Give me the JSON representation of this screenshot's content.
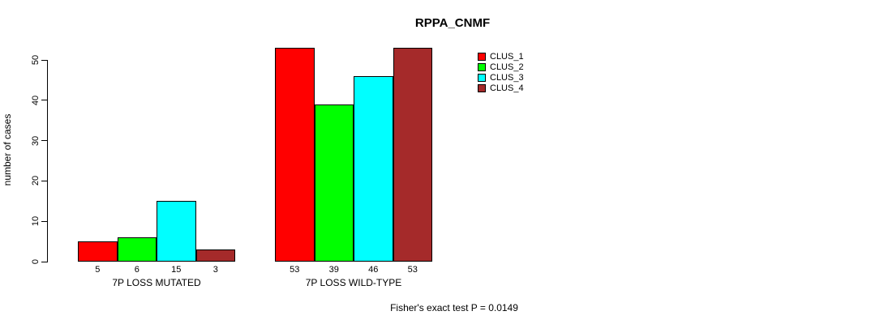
{
  "title": "RPPA_CNMF",
  "ylabel": "number of cases",
  "footer": "Fisher's exact test P = 0.0149",
  "chart_data": {
    "type": "bar",
    "title": "RPPA_CNMF",
    "xlabel": "",
    "ylabel": "number of cases",
    "categories": [
      "7P LOSS MUTATED",
      "7P LOSS WILD-TYPE"
    ],
    "series": [
      {
        "name": "CLUS_1",
        "color": "#ff0000",
        "values": [
          5,
          53
        ]
      },
      {
        "name": "CLUS_2",
        "color": "#00ff00",
        "values": [
          6,
          39
        ]
      },
      {
        "name": "CLUS_3",
        "color": "#00ffff",
        "values": [
          15,
          46
        ]
      },
      {
        "name": "CLUS_4",
        "color": "#a52a2a",
        "values": [
          3,
          53
        ]
      }
    ],
    "bar_value_labels": [
      [
        "5",
        "6",
        "15",
        "3"
      ],
      [
        "53",
        "39",
        "46",
        "53"
      ]
    ],
    "yticks": [
      0,
      10,
      20,
      30,
      40,
      50
    ],
    "ylim": [
      0,
      53
    ],
    "grid": false,
    "legend_position": "top-right",
    "annotation": "Fisher's exact test P = 0.0149"
  }
}
